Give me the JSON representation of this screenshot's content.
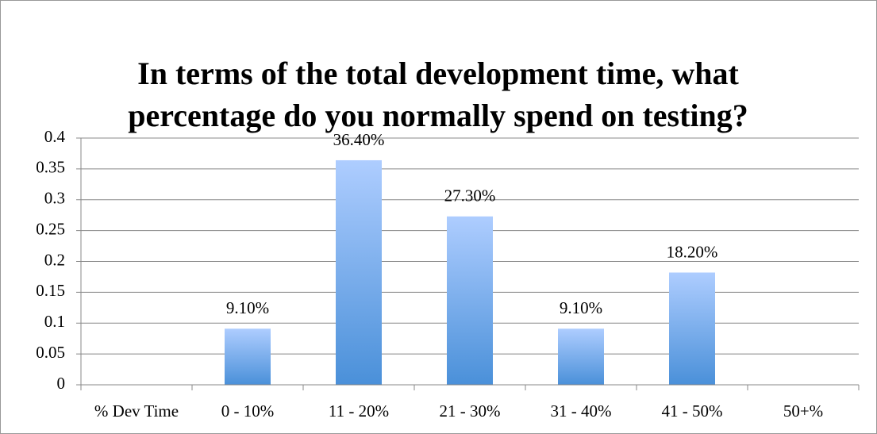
{
  "chart_data": {
    "type": "bar",
    "title_lines": [
      "In terms of the total development time, what",
      "percentage do you normally spend on testing?"
    ],
    "categories": [
      "% Dev Time",
      "0 - 10%",
      "11 - 20%",
      "21 - 30%",
      "31 - 40%",
      "41 - 50%",
      "50+%"
    ],
    "values": [
      null,
      0.091,
      0.364,
      0.273,
      0.091,
      0.182,
      null
    ],
    "value_labels": [
      null,
      "9.10%",
      "36.40%",
      "27.30%",
      "9.10%",
      "18.20%",
      null
    ],
    "color": "#4a90d9",
    "ylim": [
      0,
      0.4
    ],
    "yticks": [
      0,
      0.05,
      0.1,
      0.15,
      0.2,
      0.25,
      0.3,
      0.35,
      0.4
    ],
    "grid": true
  }
}
